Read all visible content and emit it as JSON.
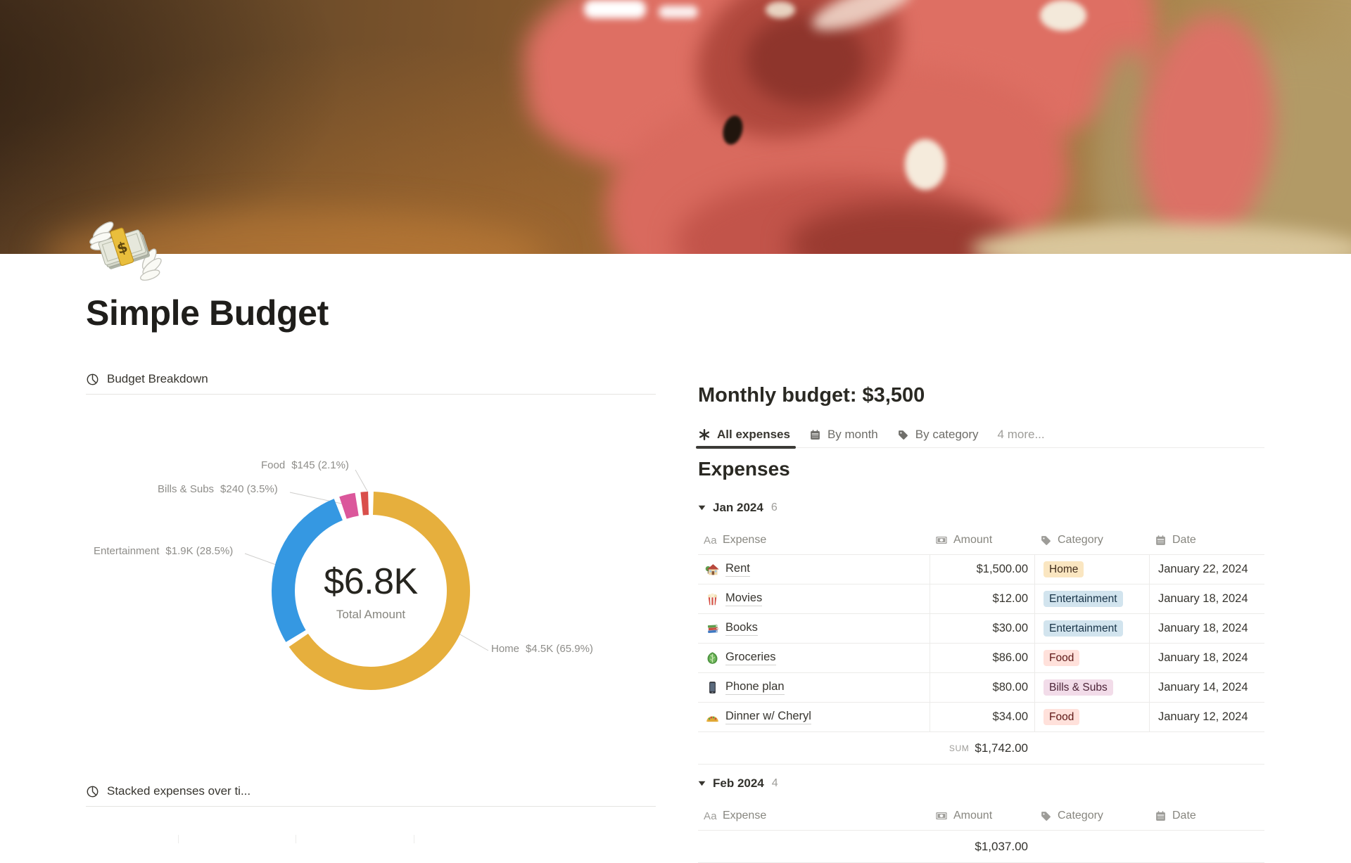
{
  "page": {
    "title": "Simple Budget",
    "icon": "money-with-wings"
  },
  "left_column": {
    "breakdown_card": {
      "title": "Budget Breakdown",
      "icon": "pie-chart"
    },
    "stacked_card": {
      "title": "Stacked expenses over ti...",
      "icon": "pie-chart"
    }
  },
  "right_column": {
    "heading": "Monthly budget: $3,500",
    "tabs": [
      {
        "label": "All expenses",
        "icon": "asterisk",
        "active": true
      },
      {
        "label": "By month",
        "icon": "calendar",
        "active": false
      },
      {
        "label": "By category",
        "icon": "tag",
        "active": false
      }
    ],
    "more_label": "4 more...",
    "section_title": "Expenses",
    "columns": [
      {
        "label": "Expense",
        "icon": "aa"
      },
      {
        "label": "Amount",
        "icon": "banknote"
      },
      {
        "label": "Category",
        "icon": "tag"
      },
      {
        "label": "Date",
        "icon": "calendar"
      }
    ],
    "category_colors": {
      "Home": {
        "bg": "#FAE6C1",
        "text": "#402C1B"
      },
      "Entertainment": {
        "bg": "#D2E4EE",
        "text": "#183347"
      },
      "Food": {
        "bg": "#FFE1DB",
        "text": "#5D1715"
      },
      "Bills & Subs": {
        "bg": "#F2DCE9",
        "text": "#4C2337"
      }
    },
    "groups": [
      {
        "name": "Jan 2024",
        "count": "6",
        "rows": [
          {
            "icon": "house",
            "expense": "Rent",
            "amount": "$1,500.00",
            "category": "Home",
            "date": "January 22, 2024"
          },
          {
            "icon": "popcorn",
            "expense": "Movies",
            "amount": "$12.00",
            "category": "Entertainment",
            "date": "January 18, 2024"
          },
          {
            "icon": "books",
            "expense": "Books",
            "amount": "$30.00",
            "category": "Entertainment",
            "date": "January 18, 2024"
          },
          {
            "icon": "leafy-green",
            "expense": "Groceries",
            "amount": "$86.00",
            "category": "Food",
            "date": "January 18, 2024"
          },
          {
            "icon": "mobile-phone",
            "expense": "Phone plan",
            "amount": "$80.00",
            "category": "Bills & Subs",
            "date": "January 14, 2024"
          },
          {
            "icon": "taco",
            "expense": "Dinner w/ Cheryl",
            "amount": "$34.00",
            "category": "Food",
            "date": "January 12, 2024"
          }
        ],
        "sum_label": "SUM",
        "sum_value": "$1,742.00"
      },
      {
        "name": "Feb 2024",
        "count": "4",
        "rows": [],
        "partial_sum_value": "$1,037.00"
      }
    ]
  },
  "chart_data": {
    "type": "pie",
    "title": "Budget Breakdown",
    "center_value": "$6.8K",
    "center_label": "Total Amount",
    "legend_position": "outside-labels",
    "segments": [
      {
        "label": "Home",
        "value_label": "$4.5K",
        "percent": 65.9,
        "display_value": "$4.5K (65.9%)",
        "color": "#E6AF3D"
      },
      {
        "label": "Entertainment",
        "value_label": "$1.9K",
        "percent": 28.5,
        "display_value": "$1.9K (28.5%)",
        "color": "#3598E2"
      },
      {
        "label": "Bills & Subs",
        "value_label": "$240",
        "percent": 3.5,
        "display_value": "$240 (3.5%)",
        "color": "#DB579B"
      },
      {
        "label": "Food",
        "value_label": "$145",
        "percent": 2.1,
        "display_value": "$145 (2.1%)",
        "color": "#D94F4B"
      }
    ]
  }
}
